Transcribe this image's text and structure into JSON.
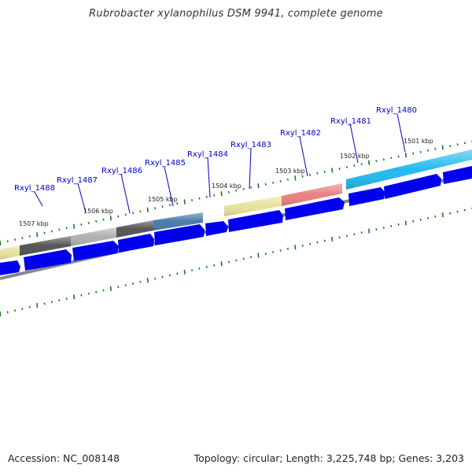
{
  "title": "Rubrobacter xylanophilus DSM 9941, complete genome",
  "footer": {
    "accession": "Accession: NC_008148",
    "summary": "Topology: circular; Length: 3,225,748 bp; Genes: 3,203"
  },
  "colors": {
    "cds_blue": "#0000ee",
    "backbone": "#888888",
    "tick_green": "#1a7a1a",
    "label_blue": "#0000cc"
  },
  "kbp_labels": [
    "1507 kbp",
    "1506 kbp",
    "1505 kbp",
    "1504 kbp",
    "1503 kbp",
    "1502 kbp",
    "1501 kbp"
  ],
  "gene_labels": [
    "Rxyl_1488",
    "Rxyl_1487",
    "Rxyl_1486",
    "Rxyl_1485",
    "Rxyl_1484",
    "Rxyl_1483",
    "Rxyl_1482",
    "Rxyl_1481",
    "Rxyl_1480"
  ],
  "feature_colors": [
    "#e8e29a",
    "#555555",
    "#b0b0b0",
    "#555555",
    "#4a7bab",
    "#e8e29a",
    "#e88080",
    "#22bbee"
  ]
}
